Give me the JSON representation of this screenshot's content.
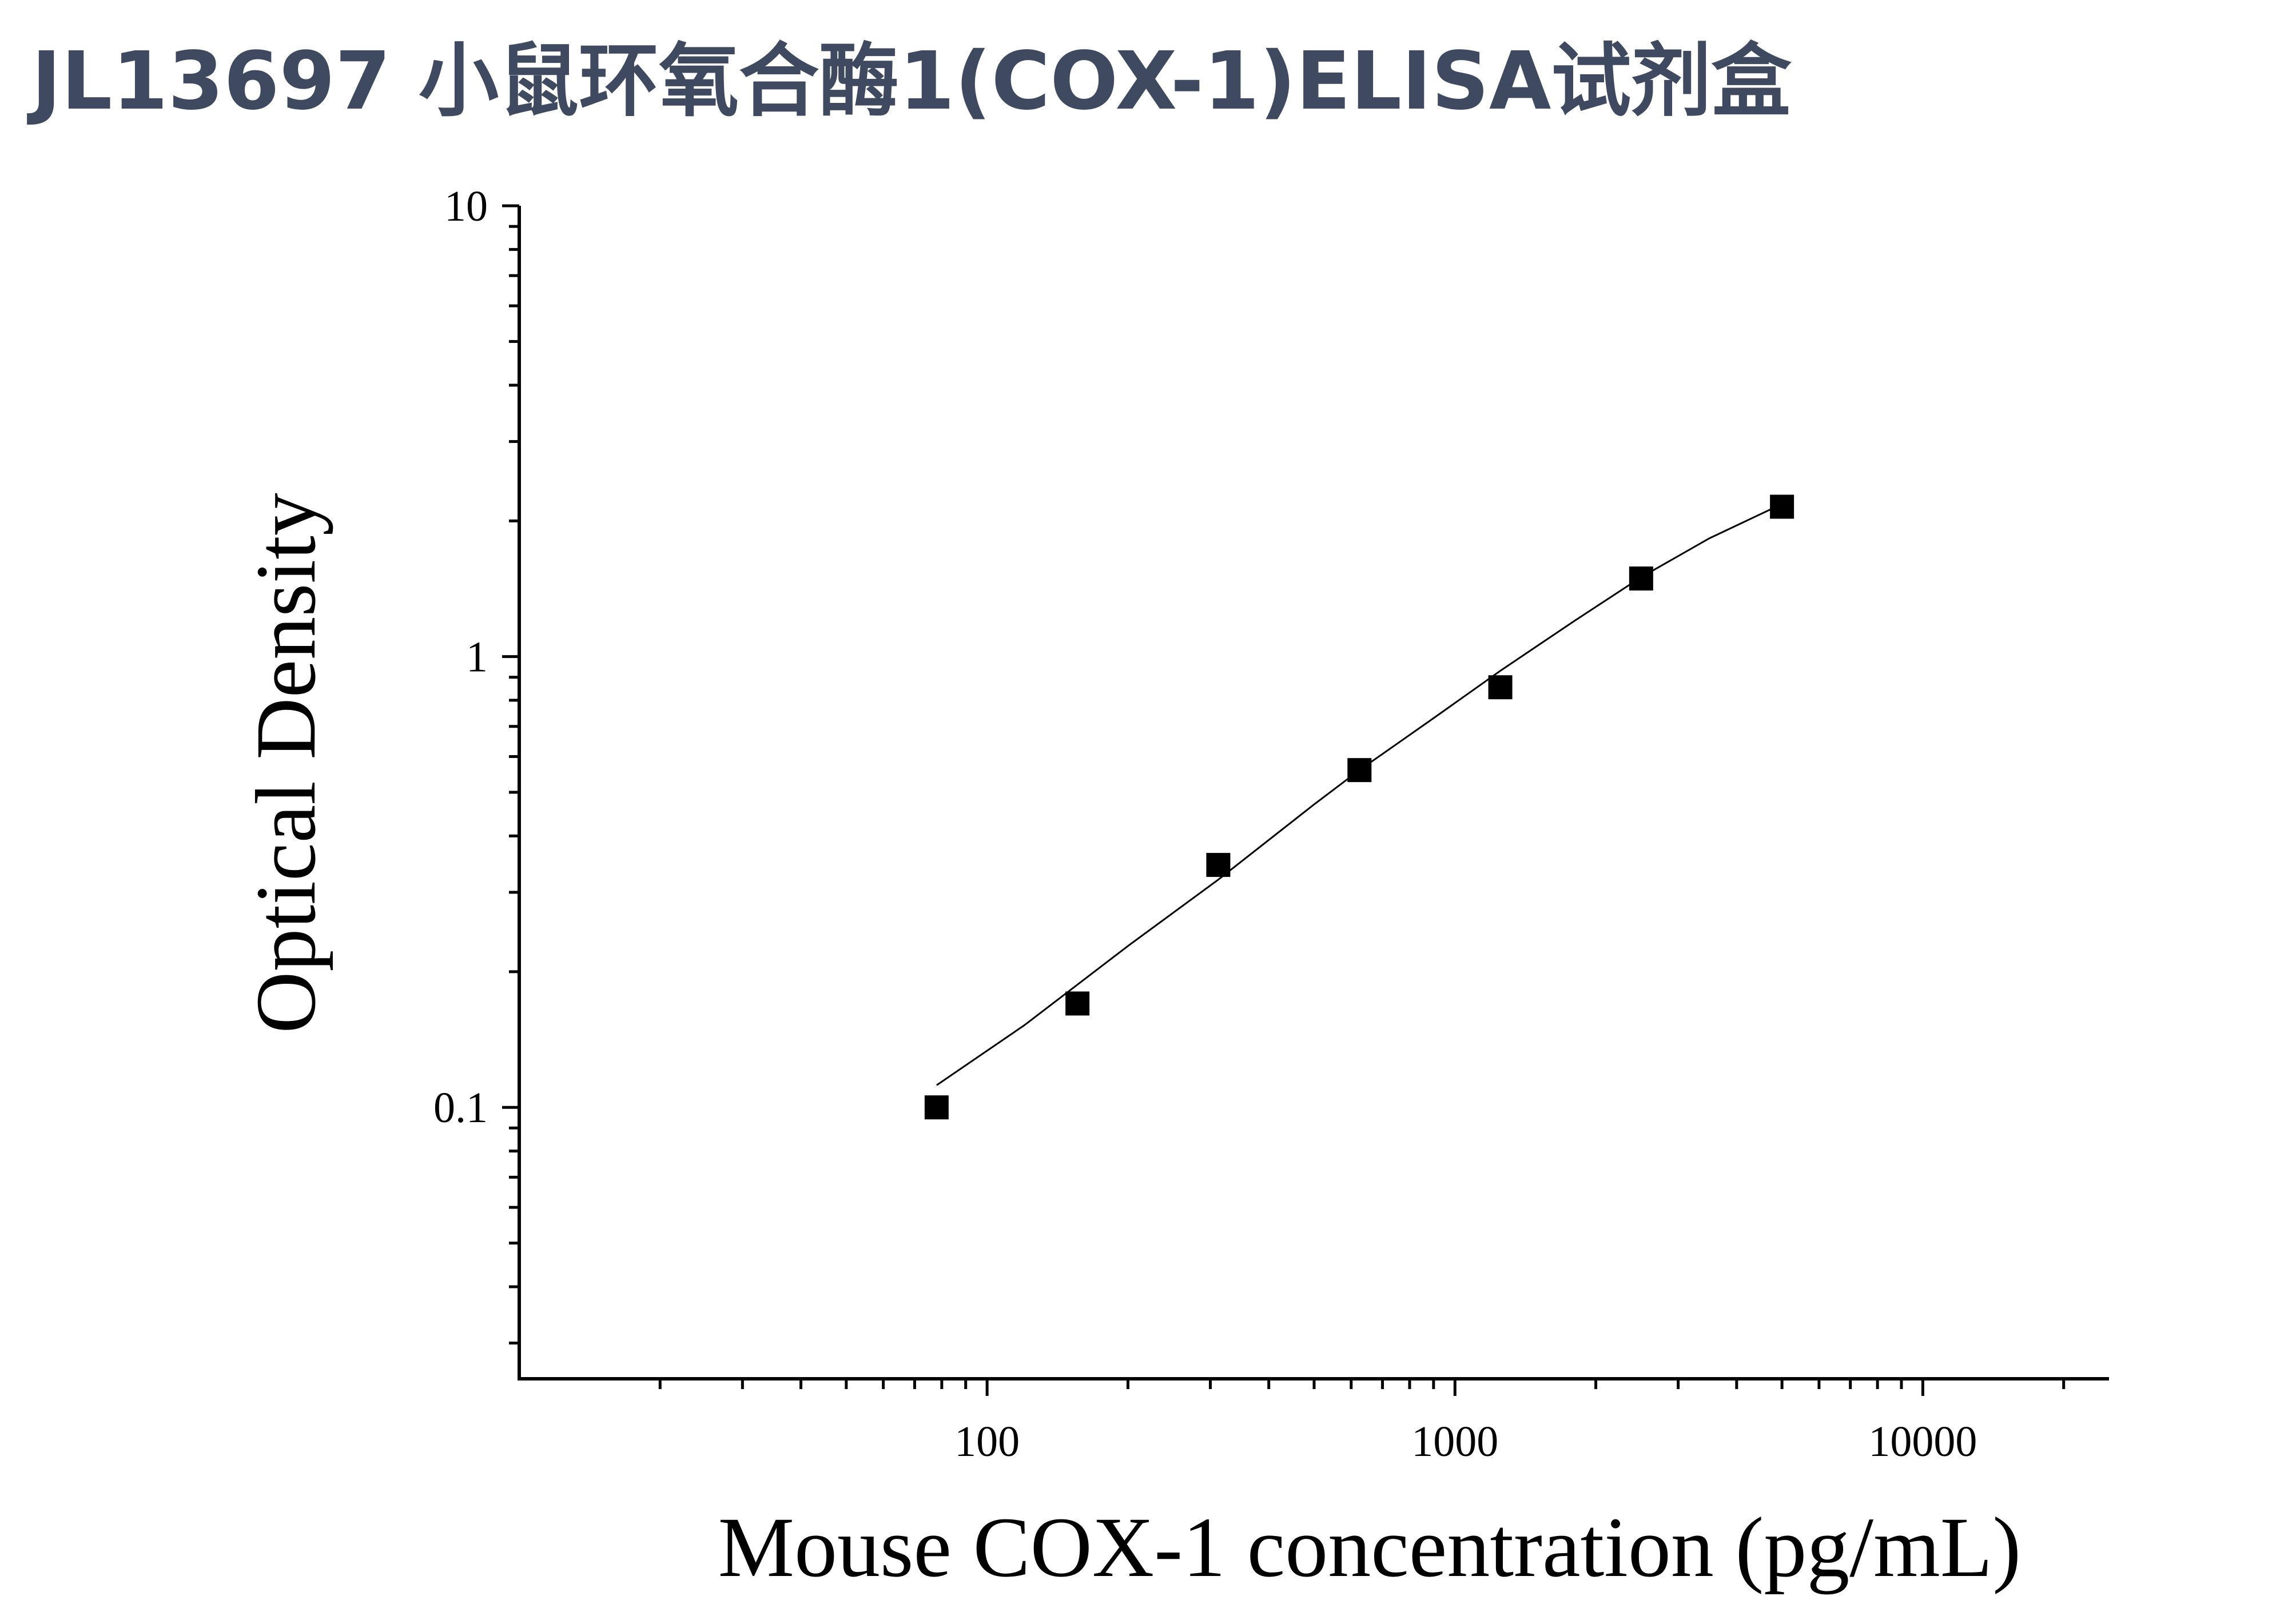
{
  "page_title": "JL13697 小鼠环氧合酶1(COX-1)ELISA试剂盒",
  "chart_data": {
    "type": "scatter",
    "xlabel": "Mouse COX-1 concentration (pg/mL)",
    "ylabel": "Optical Density",
    "x_scale": "log",
    "y_scale": "log",
    "xlim": [
      10,
      25000
    ],
    "ylim": [
      0.025,
      10
    ],
    "x_tick_labels": [
      "100",
      "1000",
      "10000"
    ],
    "x_tick_values": [
      100,
      1000,
      10000
    ],
    "y_tick_labels": [
      "10",
      "1",
      "0.1"
    ],
    "y_tick_values": [
      10,
      1,
      0.1
    ],
    "grid": false,
    "marker": "square",
    "series": [
      {
        "x": [
          78,
          156,
          312,
          625,
          1250,
          2500,
          5000
        ],
        "y": [
          0.1,
          0.17,
          0.345,
          0.56,
          0.855,
          1.49,
          2.15
        ]
      }
    ],
    "fit_curve": {
      "type": "line",
      "x": [
        78,
        120,
        200,
        312,
        500,
        625,
        900,
        1250,
        1800,
        2500,
        3500,
        5000
      ],
      "y": [
        0.112,
        0.152,
        0.228,
        0.32,
        0.47,
        0.56,
        0.73,
        0.93,
        1.2,
        1.5,
        1.83,
        2.18
      ]
    },
    "colors": {
      "title": "#3f4a61",
      "marks": "#000000"
    }
  }
}
